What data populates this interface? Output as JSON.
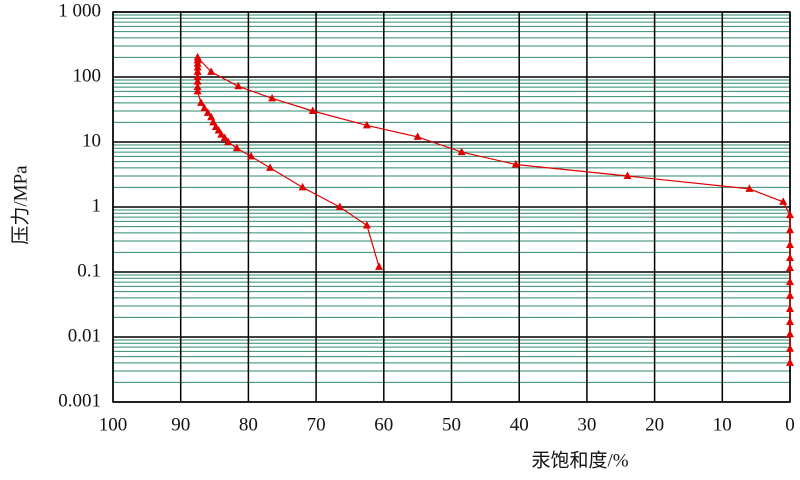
{
  "chart_data": {
    "type": "line",
    "xlabel": "汞饱和度/%",
    "ylabel": "压力/MPa",
    "xlim": [
      100,
      0
    ],
    "xticks": [
      100,
      90,
      80,
      70,
      60,
      50,
      40,
      30,
      20,
      10,
      0
    ],
    "ylim": [
      0.001,
      1000
    ],
    "yscale": "log",
    "yticks": [
      {
        "value": 1000,
        "label": "1 000"
      },
      100,
      10,
      1,
      0.1,
      0.01,
      0.001
    ],
    "grid": true,
    "minor_grid": true,
    "series": [
      {
        "color": "#e00000",
        "x": [
          0,
          0,
          0,
          0,
          0,
          0,
          0,
          0,
          0,
          0,
          0,
          0,
          1,
          6,
          24,
          40.5,
          48.5,
          55,
          62.5,
          70.5,
          76.5,
          81.5,
          85.5,
          87.5,
          87.5,
          87.5,
          87.5,
          87.5,
          87.5,
          87.5,
          87.5,
          87.5,
          87,
          86.5,
          86,
          85.5,
          85.2,
          84.8,
          84.4,
          84,
          83.5,
          83,
          81.7,
          79.6,
          76.8,
          72,
          66.5,
          62.5,
          60.7
        ],
        "y": [
          0.004,
          0.0066,
          0.011,
          0.017,
          0.027,
          0.043,
          0.07,
          0.115,
          0.164,
          0.26,
          0.44,
          0.75,
          1.2,
          1.9,
          3,
          4.5,
          7,
          12,
          18,
          30,
          47,
          72,
          120,
          200,
          180,
          160,
          140,
          120,
          100,
          85,
          70,
          60,
          40,
          33,
          28,
          24,
          20,
          17,
          15,
          13,
          11.5,
          10,
          8,
          6,
          4,
          2,
          1,
          0.52,
          0.12
        ]
      }
    ]
  }
}
